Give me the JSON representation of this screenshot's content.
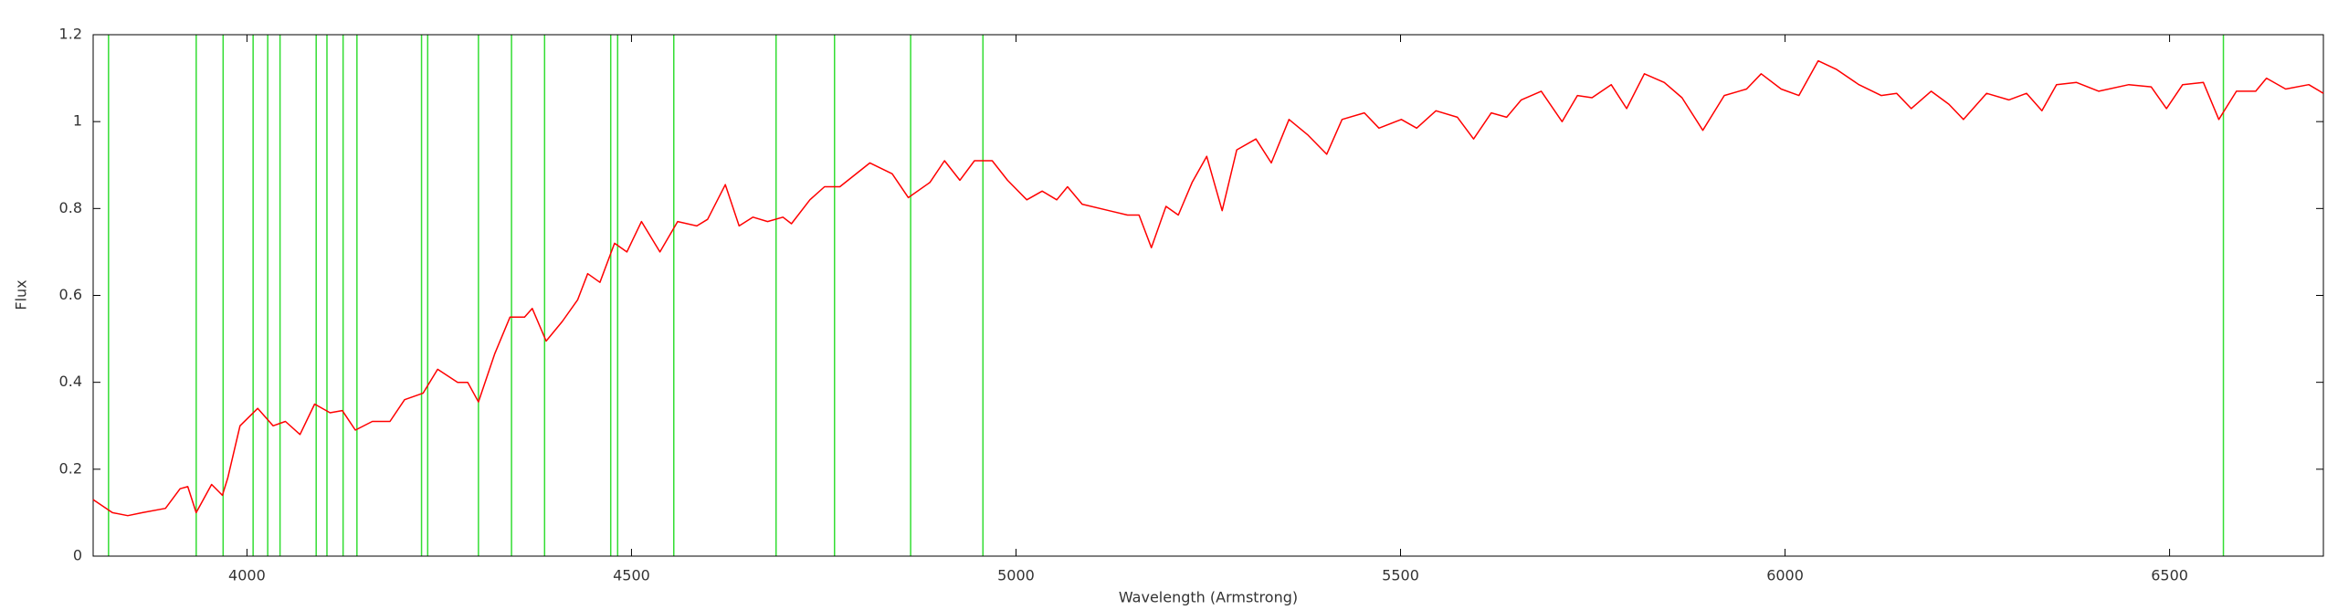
{
  "chart_data": {
    "type": "line",
    "xlabel": "Wavelength (Armstrong)",
    "ylabel": "Flux",
    "xlim": [
      3800,
      6700
    ],
    "xticks": [
      4000,
      4500,
      5000,
      5500,
      6000,
      6500
    ],
    "ylim": [
      0,
      1.2
    ],
    "yticks": [
      0,
      0.2,
      0.4,
      0.6,
      0.8,
      1,
      1.2
    ],
    "x": [
      3800,
      3825,
      3845,
      3864,
      3894,
      3913,
      3923,
      3934,
      3954,
      3968,
      3975,
      3991,
      4014,
      4034,
      4050,
      4069,
      4088,
      4108,
      4124,
      4141,
      4163,
      4186,
      4205,
      4229,
      4248,
      4274,
      4287,
      4301,
      4322,
      4342,
      4361,
      4371,
      4389,
      4410,
      4430,
      4443,
      4459,
      4478,
      4494,
      4513,
      4537,
      4560,
      4585,
      4599,
      4622,
      4640,
      4658,
      4677,
      4697,
      4708,
      4732,
      4751,
      4771,
      4810,
      4839,
      4860,
      4888,
      4907,
      4927,
      4946,
      4969,
      4989,
      5014,
      5034,
      5053,
      5067,
      5086,
      5121,
      5145,
      5160,
      5176,
      5195,
      5211,
      5229,
      5248,
      5268,
      5287,
      5312,
      5332,
      5355,
      5379,
      5404,
      5424,
      5453,
      5472,
      5501,
      5521,
      5546,
      5574,
      5595,
      5618,
      5638,
      5657,
      5683,
      5710,
      5730,
      5749,
      5774,
      5794,
      5817,
      5843,
      5866,
      5893,
      5921,
      5950,
      5969,
      5995,
      6018,
      6043,
      6067,
      6096,
      6125,
      6145,
      6164,
      6190,
      6213,
      6232,
      6262,
      6291,
      6314,
      6334,
      6353,
      6379,
      6408,
      6447,
      6476,
      6496,
      6517,
      6544,
      6564,
      6587,
      6612,
      6626,
      6651,
      6681,
      6700
    ],
    "series": [
      {
        "color": "#ff0000",
        "values": [
          0.13,
          0.1,
          0.093,
          0.1,
          0.11,
          0.155,
          0.16,
          0.1,
          0.165,
          0.14,
          0.18,
          0.3,
          0.34,
          0.3,
          0.31,
          0.28,
          0.35,
          0.33,
          0.335,
          0.29,
          0.31,
          0.31,
          0.36,
          0.375,
          0.43,
          0.4,
          0.4,
          0.355,
          0.465,
          0.55,
          0.55,
          0.57,
          0.495,
          0.54,
          0.59,
          0.65,
          0.63,
          0.72,
          0.7,
          0.77,
          0.7,
          0.77,
          0.76,
          0.775,
          0.855,
          0.76,
          0.78,
          0.77,
          0.78,
          0.765,
          0.82,
          0.85,
          0.85,
          0.905,
          0.88,
          0.825,
          0.86,
          0.91,
          0.865,
          0.91,
          0.91,
          0.865,
          0.82,
          0.84,
          0.82,
          0.85,
          0.81,
          0.795,
          0.785,
          0.785,
          0.71,
          0.805,
          0.785,
          0.86,
          0.92,
          0.795,
          0.935,
          0.96,
          0.905,
          1.005,
          0.97,
          0.925,
          1.005,
          1.02,
          0.985,
          1.005,
          0.985,
          1.025,
          1.01,
          0.96,
          1.02,
          1.01,
          1.05,
          1.07,
          1.0,
          1.06,
          1.055,
          1.085,
          1.03,
          1.11,
          1.09,
          1.055,
          0.98,
          1.06,
          1.075,
          1.11,
          1.075,
          1.06,
          1.14,
          1.12,
          1.085,
          1.06,
          1.065,
          1.03,
          1.07,
          1.04,
          1.005,
          1.065,
          1.05,
          1.065,
          1.025,
          1.085,
          1.09,
          1.07,
          1.085,
          1.08,
          1.03,
          1.085,
          1.09,
          1.005,
          1.07,
          1.07,
          1.1,
          1.075,
          1.085,
          1.065
        ]
      }
    ],
    "vlines": {
      "color": "#33dd33",
      "x": [
        3820,
        3934,
        3969,
        4008,
        4027,
        4043,
        4090,
        4104,
        4125,
        4143,
        4227,
        4235,
        4301,
        4344,
        4387,
        4473,
        4482,
        4555,
        4688,
        4764,
        4863,
        4957,
        6570
      ]
    }
  }
}
